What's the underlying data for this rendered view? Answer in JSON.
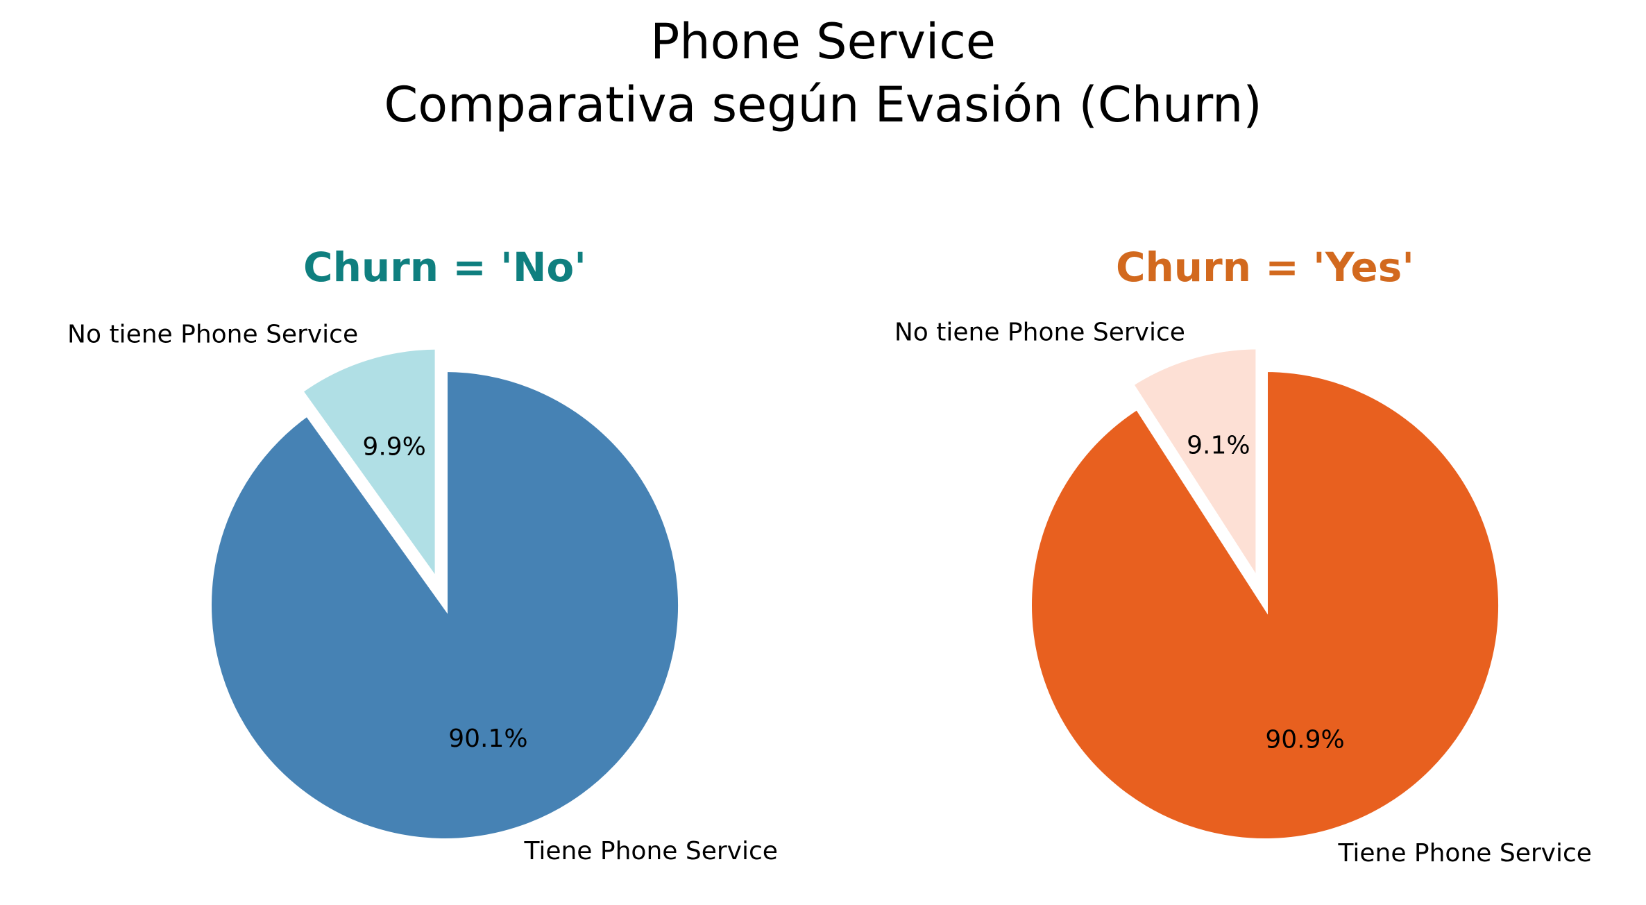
{
  "figure": {
    "title_line1": "Phone Service",
    "title_line2": "Comparativa según Evasión (Churn)"
  },
  "chart_data": [
    {
      "type": "pie",
      "title": "Churn = 'No'",
      "title_color": "#0f7f7f",
      "labels": [
        "No tiene Phone Service",
        "Tiene Phone Service"
      ],
      "values": [
        9.9,
        90.1
      ],
      "value_labels": [
        "9.9%",
        "90.1%"
      ],
      "colors": [
        "#b0dfe5",
        "#4682b4"
      ],
      "exploded": [
        true,
        false
      ],
      "start": "top, counterclockwise"
    },
    {
      "type": "pie",
      "title": "Churn = 'Yes'",
      "title_color": "#d2691e",
      "labels": [
        "No tiene Phone Service",
        "Tiene Phone Service"
      ],
      "values": [
        9.1,
        90.9
      ],
      "value_labels": [
        "9.1%",
        "90.9%"
      ],
      "colors": [
        "#fde0d5",
        "#e8601f"
      ],
      "exploded": [
        true,
        false
      ],
      "start": "top, counterclockwise"
    }
  ]
}
